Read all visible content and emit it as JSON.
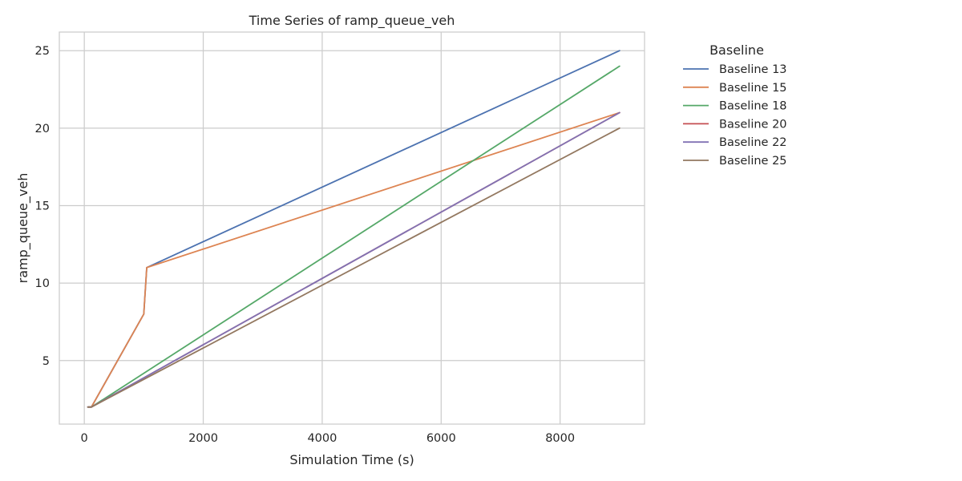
{
  "chart_data": {
    "type": "line",
    "title": "Time Series of ramp_queue_veh",
    "xlabel": "Simulation Time (s)",
    "ylabel": "ramp_queue_veh",
    "xlim": [
      -420,
      9420
    ],
    "ylim": [
      0.9,
      26.2
    ],
    "xticks": [
      0,
      2000,
      4000,
      6000,
      8000
    ],
    "yticks": [
      5,
      10,
      15,
      20,
      25
    ],
    "grid": true,
    "legend": {
      "title": "Baseline",
      "placement": "outside-right"
    },
    "series": [
      {
        "name": "Baseline 13",
        "color": "#4c72b0",
        "x": [
          60,
          120,
          1000,
          1050,
          9000
        ],
        "y": [
          2,
          2,
          8,
          11,
          25
        ]
      },
      {
        "name": "Baseline 15",
        "color": "#dd8452",
        "x": [
          60,
          120,
          1000,
          1050,
          9000
        ],
        "y": [
          2,
          2,
          8,
          11,
          21
        ]
      },
      {
        "name": "Baseline 18",
        "color": "#55a868",
        "x": [
          60,
          120,
          9000
        ],
        "y": [
          2,
          2,
          24
        ]
      },
      {
        "name": "Baseline 20",
        "color": "#c44e52",
        "x": [
          60,
          120,
          9000
        ],
        "y": [
          2,
          2,
          21
        ]
      },
      {
        "name": "Baseline 22",
        "color": "#8172b3",
        "x": [
          60,
          120,
          9000
        ],
        "y": [
          2,
          2,
          21
        ]
      },
      {
        "name": "Baseline 25",
        "color": "#937860",
        "x": [
          60,
          120,
          9000
        ],
        "y": [
          2,
          2,
          20
        ]
      }
    ]
  }
}
